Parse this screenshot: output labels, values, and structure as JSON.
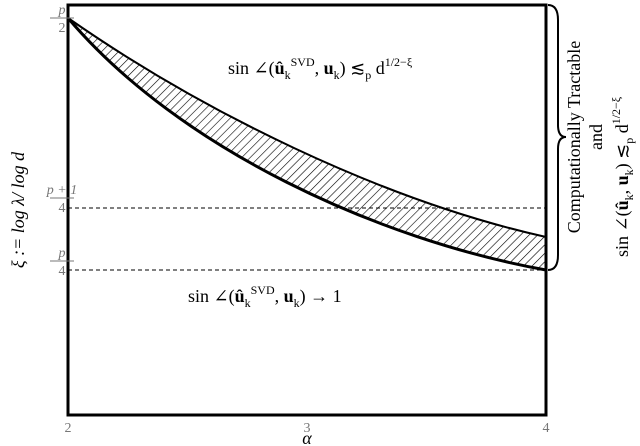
{
  "x_axis": {
    "label": "α",
    "ticks": [
      "2",
      "3",
      "4"
    ]
  },
  "y_axis": {
    "label": "ξ := log λ/ log d",
    "ticks": [
      {
        "numerator": "p",
        "denominator": "2"
      },
      {
        "numerator": "p + 1",
        "denominator": "4"
      },
      {
        "numerator": "p",
        "denominator": "4"
      }
    ]
  },
  "upper_region": {
    "parts": [
      "sin ∠(",
      "û",
      "k",
      "SVD",
      ", ",
      "u",
      "k",
      ") ≲",
      "p",
      " d",
      "1/2−ξ"
    ]
  },
  "lower_region": {
    "parts": [
      "sin ∠(",
      "û",
      "k",
      "SVD",
      ", ",
      "u",
      "k",
      ") → 1"
    ]
  },
  "right_label": {
    "line1": "Computationally Tractable",
    "line2": "and",
    "line3": [
      "sin ∠(",
      "û",
      "k",
      ", ",
      "u",
      "k",
      ") ≲",
      "p",
      " d",
      "1/2−ξ"
    ]
  }
}
